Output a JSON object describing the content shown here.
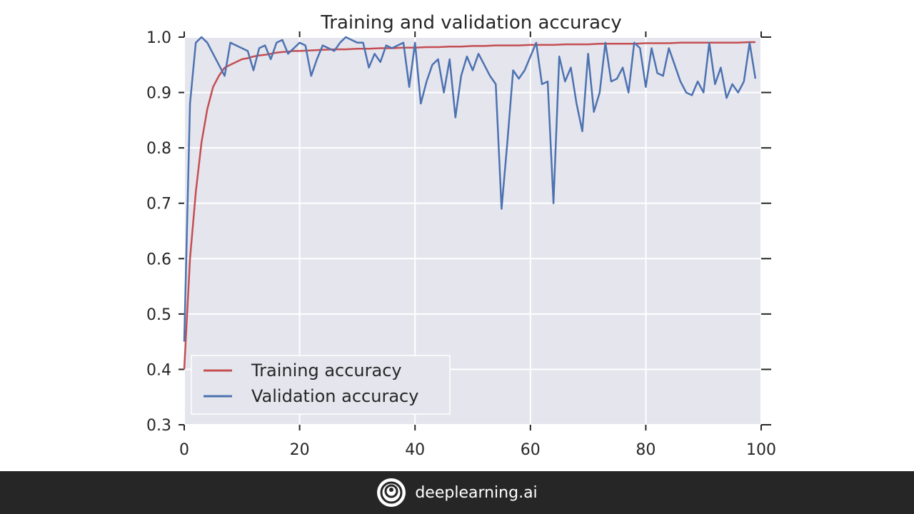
{
  "chart_data": {
    "type": "line",
    "title": "Training and validation accuracy",
    "xlim": [
      0,
      100
    ],
    "ylim": [
      0.3,
      1.0
    ],
    "xticks": [
      0,
      20,
      40,
      60,
      80,
      100
    ],
    "yticks": [
      0.3,
      0.4,
      0.5,
      0.6,
      0.7,
      0.8,
      0.9,
      1.0
    ],
    "xtick_labels": [
      "0",
      "20",
      "40",
      "60",
      "80",
      "100"
    ],
    "ytick_labels": [
      "0.3",
      "0.4",
      "0.5",
      "0.6",
      "0.7",
      "0.8",
      "0.9",
      "1.0"
    ],
    "grid": true,
    "legend_position": "lower-left",
    "series": [
      {
        "name": "Training accuracy",
        "color": "#c44e52",
        "x": [
          0,
          1,
          2,
          3,
          4,
          5,
          6,
          7,
          8,
          9,
          10,
          11,
          12,
          13,
          14,
          15,
          16,
          17,
          18,
          19,
          20,
          22,
          24,
          26,
          28,
          30,
          32,
          34,
          36,
          38,
          40,
          42,
          44,
          46,
          48,
          50,
          52,
          54,
          56,
          58,
          60,
          62,
          64,
          66,
          68,
          70,
          72,
          74,
          76,
          78,
          80,
          82,
          84,
          86,
          88,
          90,
          92,
          94,
          96,
          98,
          99
        ],
        "values": [
          0.4,
          0.6,
          0.72,
          0.81,
          0.87,
          0.91,
          0.93,
          0.945,
          0.95,
          0.955,
          0.96,
          0.962,
          0.965,
          0.967,
          0.968,
          0.97,
          0.972,
          0.973,
          0.974,
          0.975,
          0.975,
          0.976,
          0.977,
          0.978,
          0.978,
          0.979,
          0.979,
          0.98,
          0.98,
          0.981,
          0.981,
          0.982,
          0.982,
          0.983,
          0.983,
          0.984,
          0.984,
          0.985,
          0.985,
          0.985,
          0.986,
          0.986,
          0.986,
          0.987,
          0.987,
          0.987,
          0.988,
          0.988,
          0.988,
          0.988,
          0.989,
          0.989,
          0.989,
          0.99,
          0.99,
          0.99,
          0.99,
          0.99,
          0.99,
          0.991,
          0.991
        ]
      },
      {
        "name": "Validation accuracy",
        "color": "#4c72b0",
        "x": [
          0,
          1,
          2,
          3,
          4,
          5,
          6,
          7,
          8,
          9,
          10,
          11,
          12,
          13,
          14,
          15,
          16,
          17,
          18,
          19,
          20,
          21,
          22,
          23,
          24,
          25,
          26,
          27,
          28,
          29,
          30,
          31,
          32,
          33,
          34,
          35,
          36,
          37,
          38,
          39,
          40,
          41,
          42,
          43,
          44,
          45,
          46,
          47,
          48,
          49,
          50,
          51,
          52,
          53,
          54,
          55,
          56,
          57,
          58,
          59,
          60,
          61,
          62,
          63,
          64,
          65,
          66,
          67,
          68,
          69,
          70,
          71,
          72,
          73,
          74,
          75,
          76,
          77,
          78,
          79,
          80,
          81,
          82,
          83,
          84,
          85,
          86,
          87,
          88,
          89,
          90,
          91,
          92,
          93,
          94,
          95,
          96,
          97,
          98,
          99
        ],
        "values": [
          0.45,
          0.88,
          0.99,
          1.0,
          0.99,
          0.97,
          0.95,
          0.93,
          0.99,
          0.985,
          0.98,
          0.975,
          0.94,
          0.98,
          0.985,
          0.96,
          0.99,
          0.995,
          0.97,
          0.98,
          0.99,
          0.985,
          0.93,
          0.96,
          0.985,
          0.98,
          0.975,
          0.99,
          1.0,
          0.995,
          0.99,
          0.99,
          0.945,
          0.97,
          0.955,
          0.985,
          0.98,
          0.985,
          0.99,
          0.91,
          0.99,
          0.88,
          0.92,
          0.95,
          0.96,
          0.9,
          0.96,
          0.855,
          0.93,
          0.965,
          0.94,
          0.97,
          0.95,
          0.93,
          0.915,
          0.69,
          0.81,
          0.94,
          0.925,
          0.94,
          0.965,
          0.99,
          0.915,
          0.92,
          0.7,
          0.965,
          0.92,
          0.945,
          0.88,
          0.83,
          0.97,
          0.865,
          0.9,
          0.99,
          0.92,
          0.925,
          0.945,
          0.9,
          0.99,
          0.98,
          0.91,
          0.98,
          0.935,
          0.93,
          0.98,
          0.95,
          0.92,
          0.9,
          0.895,
          0.92,
          0.9,
          0.99,
          0.915,
          0.945,
          0.89,
          0.915,
          0.9,
          0.92,
          0.99,
          0.925
        ]
      }
    ]
  },
  "footer": {
    "brand_text": "deeplearning.ai",
    "background": "#262626",
    "icon": "deeplearning-logo-icon"
  }
}
